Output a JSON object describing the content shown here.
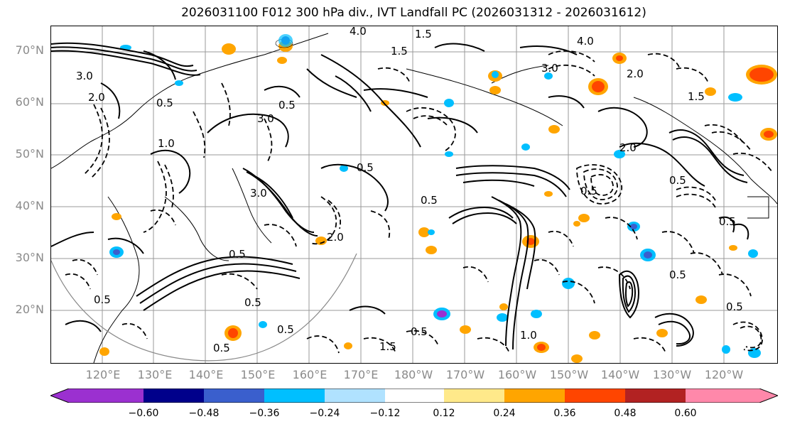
{
  "title": "2026031100 F012 300 hPa div., IVT Landfall PC (2026031312 - 2026031612)",
  "lat_labels": [
    "70°N",
    "60°N",
    "50°N",
    "40°N",
    "30°N",
    "20°N"
  ],
  "lon_labels": [
    "120°E",
    "130°E",
    "140°E",
    "150°E",
    "160°E",
    "170°E",
    "180°W",
    "170°W",
    "160°W",
    "150°W",
    "140°W",
    "130°W",
    "120°W"
  ],
  "colorbar": {
    "colors": [
      "#9b30d0",
      "#00008b",
      "#3a5fcd",
      "#00bfff",
      "#b0e2ff",
      "#ffffff",
      "#ffe98a",
      "#ffa500",
      "#ff4500",
      "#b22222",
      "#ff88aa"
    ],
    "tick_labels": [
      "−0.60",
      "−0.48",
      "−0.36",
      "−0.24",
      "−0.12",
      "0.12",
      "0.24",
      "0.36",
      "0.48",
      "0.60"
    ]
  },
  "contour_labels": [
    "4.0",
    "1.5",
    "3.0",
    "2.0",
    "0.5",
    "0.5",
    "3.0",
    "1.5",
    "4.0",
    "2.0",
    "3.0",
    "2.0",
    "0.5",
    "0.5",
    "1.5",
    "0.5",
    "0.5",
    "2.0",
    "0.5",
    "0.5",
    "1.0",
    "0.5",
    "0.5",
    "1.5",
    "0.5",
    "0.5",
    "0.5",
    "3.0",
    "0.5",
    "1.0",
    "0.5"
  ]
}
